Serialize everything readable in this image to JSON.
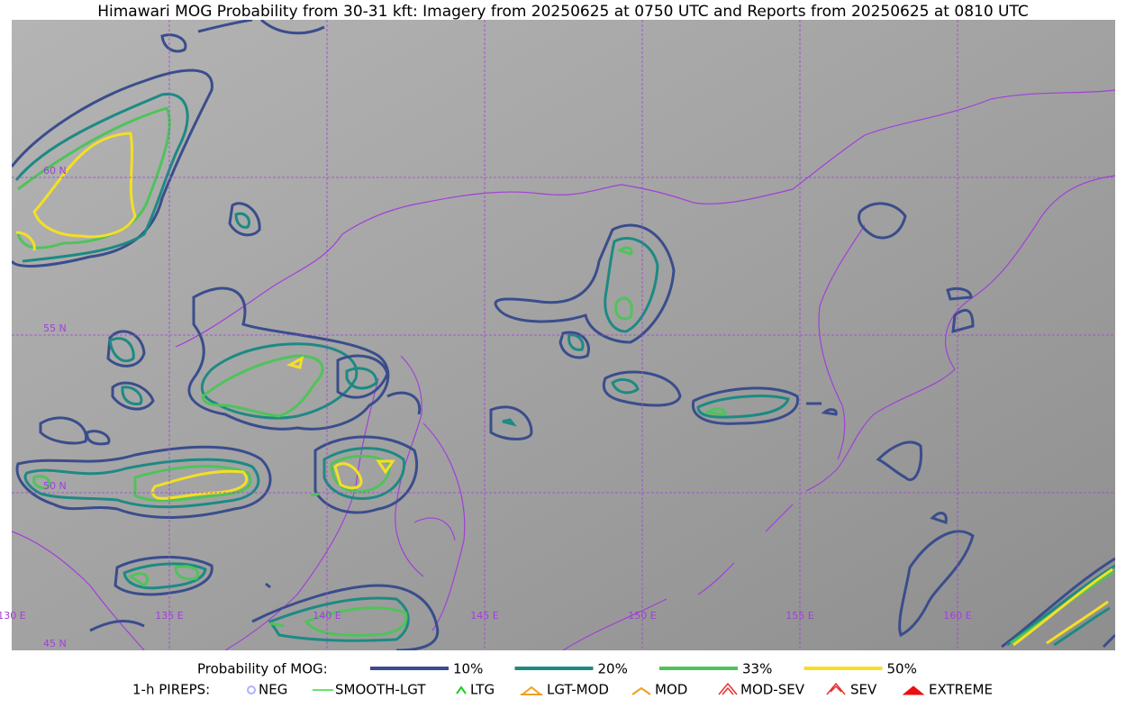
{
  "header": {
    "title": "Himawari MOG Probability from 30-31 kft: Imagery from 20250625 at 0750 UTC and Reports from 20250625 at 0810 UTC"
  },
  "map": {
    "lon_labels": [
      "130 E",
      "135 E",
      "140 E",
      "145 E",
      "150 E",
      "155 E",
      "160 E"
    ],
    "lat_labels": [
      "60 N",
      "55 N",
      "50 N",
      "45 N"
    ]
  },
  "legend": {
    "mog": {
      "label": "Probability of MOG:",
      "items": [
        "10%",
        "20%",
        "33%",
        "50%"
      ]
    },
    "pireps": {
      "label": "1-h PIREPS:",
      "items": [
        "NEG",
        "SMOOTH-LGT",
        "LTG",
        "LGT-MOD",
        "MOD",
        "MOD-SEV",
        "SEV",
        "EXTREME"
      ]
    }
  }
}
